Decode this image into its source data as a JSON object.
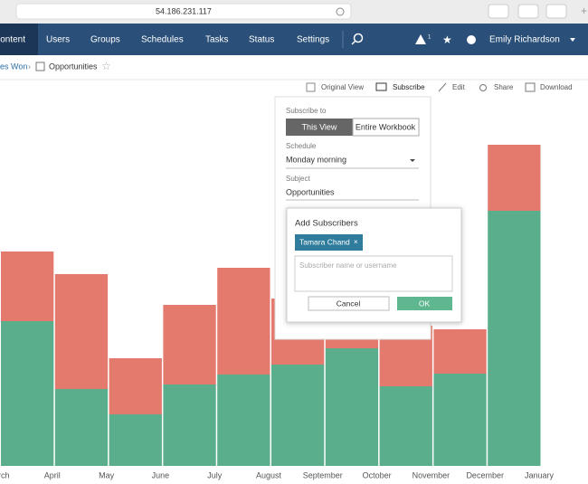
{
  "browser": {
    "url": "54.186.231.117"
  },
  "nav": {
    "items": [
      "Content",
      "Users",
      "Groups",
      "Schedules",
      "Tasks",
      "Status",
      "Settings"
    ],
    "alert_count": "1",
    "user": "Emily Richardson"
  },
  "breadcrumb": {
    "parent": "es Won",
    "current": "Opportunities"
  },
  "toolbar": {
    "original_view": "Original View",
    "subscribe": "Subscribe",
    "edit": "Edit",
    "share": "Share",
    "download": "Download"
  },
  "chart_data": {
    "type": "bar",
    "stacked": true,
    "categories": [
      "March",
      "April",
      "May",
      "June",
      "July",
      "August",
      "September",
      "October",
      "November",
      "December",
      "January"
    ],
    "series": [
      {
        "color": "#5aae8b",
        "values": [
          160,
          85,
          57,
          90,
          101,
          112,
          130,
          88,
          102,
          282,
          null
        ]
      },
      {
        "color": "#e4796d",
        "values": [
          77,
          127,
          62,
          88,
          118,
          73,
          20,
          67,
          49,
          73,
          null
        ]
      }
    ],
    "ylim": [
      0,
      425
    ]
  },
  "subscribe_panel": {
    "subscribe_to": "Subscribe to",
    "options": [
      "This View",
      "Entire Workbook"
    ],
    "schedule_label": "Schedule",
    "schedule": "Monday morning",
    "subject_label": "Subject",
    "subject": "Opportunities"
  },
  "dialog": {
    "title": "Add Subscribers",
    "chip": "Tamara Chand",
    "placeholder": "Subscriber name or username",
    "cancel": "Cancel",
    "ok": "OK"
  }
}
